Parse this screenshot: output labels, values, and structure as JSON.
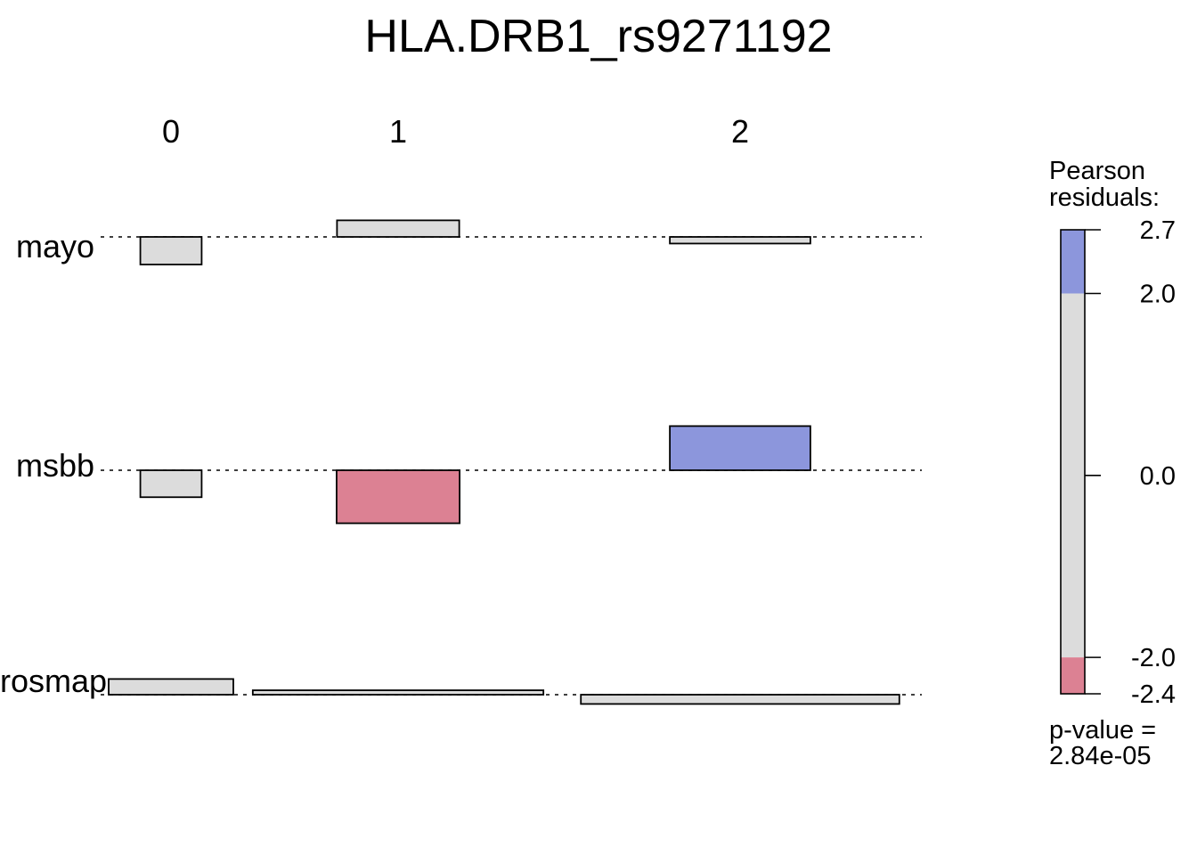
{
  "chart_data": {
    "type": "association",
    "title": "HLA.DRB1_rs9271192",
    "x_var_levels": [
      "0",
      "1",
      "2"
    ],
    "y_var_levels": [
      "mayo",
      "msbb",
      "rosmap"
    ],
    "cells": [
      {
        "row": "mayo",
        "col": "0",
        "residual": -1.25,
        "expected": 75
      },
      {
        "row": "mayo",
        "col": "1",
        "residual": 0.75,
        "expected": 298
      },
      {
        "row": "mayo",
        "col": "2",
        "residual": -0.3,
        "expected": 394
      },
      {
        "row": "msbb",
        "col": "0",
        "residual": -1.22,
        "expected": 75
      },
      {
        "row": "msbb",
        "col": "1",
        "residual": -2.4,
        "expected": 302
      },
      {
        "row": "msbb",
        "col": "2",
        "residual": 2.0,
        "expected": 394
      },
      {
        "row": "rosmap",
        "col": "0",
        "residual": 0.71,
        "expected": 310
      },
      {
        "row": "rosmap",
        "col": "1",
        "residual": 0.2,
        "expected": 1685
      },
      {
        "row": "rosmap",
        "col": "2",
        "residual": -0.42,
        "expected": 2023
      }
    ],
    "legend": {
      "title_lines": [
        "Pearson",
        "residuals:"
      ],
      "range": [
        -2.4,
        2.7
      ],
      "ticks": [
        "2.7",
        "2.0",
        "0.0",
        "-2.0",
        "-2.4"
      ],
      "shading_thresholds": [
        -2.0,
        2.0
      ]
    },
    "p_value_label": "p-value =",
    "p_value": "2.84e-05"
  },
  "colors": {
    "positive": "#8c96dc",
    "negative": "#dc8193",
    "neutral": "#dcdcdc",
    "stroke": "#000000"
  }
}
